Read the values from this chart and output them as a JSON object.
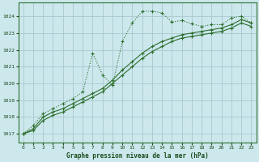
{
  "background_color": "#cce8ed",
  "grid_color": "#a8c8cf",
  "line_color": "#2d6e2d",
  "title": "Graphe pression niveau de la mer (hPa)",
  "xlim": [
    -0.5,
    23.5
  ],
  "ylim": [
    1016.5,
    1024.8
  ],
  "yticks": [
    1017,
    1018,
    1019,
    1020,
    1021,
    1022,
    1023,
    1024
  ],
  "xticks": [
    0,
    1,
    2,
    3,
    4,
    5,
    6,
    7,
    8,
    9,
    10,
    11,
    12,
    13,
    14,
    15,
    16,
    17,
    18,
    19,
    20,
    21,
    22,
    23
  ],
  "series_dotted": {
    "x": [
      0,
      1,
      2,
      3,
      4,
      5,
      6,
      7,
      8,
      9,
      10,
      11,
      12,
      13,
      14,
      15,
      16,
      17,
      18,
      19,
      20,
      21,
      22,
      23
    ],
    "y": [
      1017.0,
      1017.5,
      1018.2,
      1018.5,
      1018.8,
      1019.1,
      1019.5,
      1021.8,
      1020.5,
      1019.9,
      1022.5,
      1023.6,
      1024.3,
      1024.3,
      1024.2,
      1023.65,
      1023.75,
      1023.55,
      1023.4,
      1023.5,
      1023.5,
      1023.9,
      1024.0,
      1023.6
    ]
  },
  "series_solid1": {
    "x": [
      0,
      1,
      2,
      3,
      4,
      5,
      6,
      7,
      8,
      9,
      10,
      11,
      12,
      13,
      14,
      15,
      16,
      17,
      18,
      19,
      20,
      21,
      22,
      23
    ],
    "y": [
      1017.0,
      1017.3,
      1018.0,
      1018.3,
      1018.5,
      1018.8,
      1019.1,
      1019.4,
      1019.7,
      1020.2,
      1020.8,
      1021.3,
      1021.8,
      1022.2,
      1022.5,
      1022.7,
      1022.9,
      1023.0,
      1023.1,
      1023.2,
      1023.3,
      1023.5,
      1023.8,
      1023.6
    ]
  },
  "series_solid2": {
    "x": [
      0,
      1,
      2,
      3,
      4,
      5,
      6,
      7,
      8,
      9,
      10,
      11,
      12,
      13,
      14,
      15,
      16,
      17,
      18,
      19,
      20,
      21,
      22,
      23
    ],
    "y": [
      1017.0,
      1017.2,
      1017.8,
      1018.1,
      1018.3,
      1018.6,
      1018.9,
      1019.2,
      1019.5,
      1020.0,
      1020.5,
      1021.0,
      1021.5,
      1021.9,
      1022.2,
      1022.5,
      1022.7,
      1022.8,
      1022.9,
      1023.0,
      1023.1,
      1023.3,
      1023.6,
      1023.4
    ]
  }
}
